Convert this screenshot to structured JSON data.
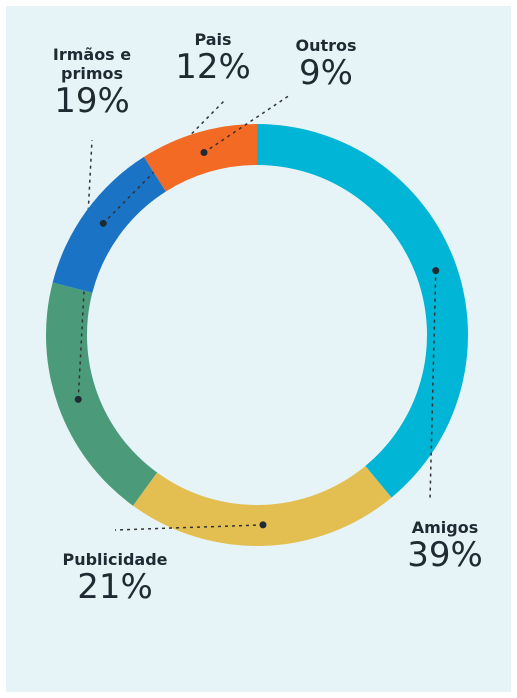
{
  "chart_data": {
    "type": "donut",
    "categories": [
      "Amigos",
      "Publicidade",
      "Irmãos e primos",
      "Pais",
      "Outros"
    ],
    "values": [
      39,
      21,
      19,
      12,
      9
    ],
    "value_labels": [
      "39%",
      "21%",
      "19%",
      "12%",
      "9%"
    ],
    "colors": [
      "#00b5d5",
      "#e3bf52",
      "#4b9b7b",
      "#1b73c6",
      "#f36a25"
    ]
  }
}
